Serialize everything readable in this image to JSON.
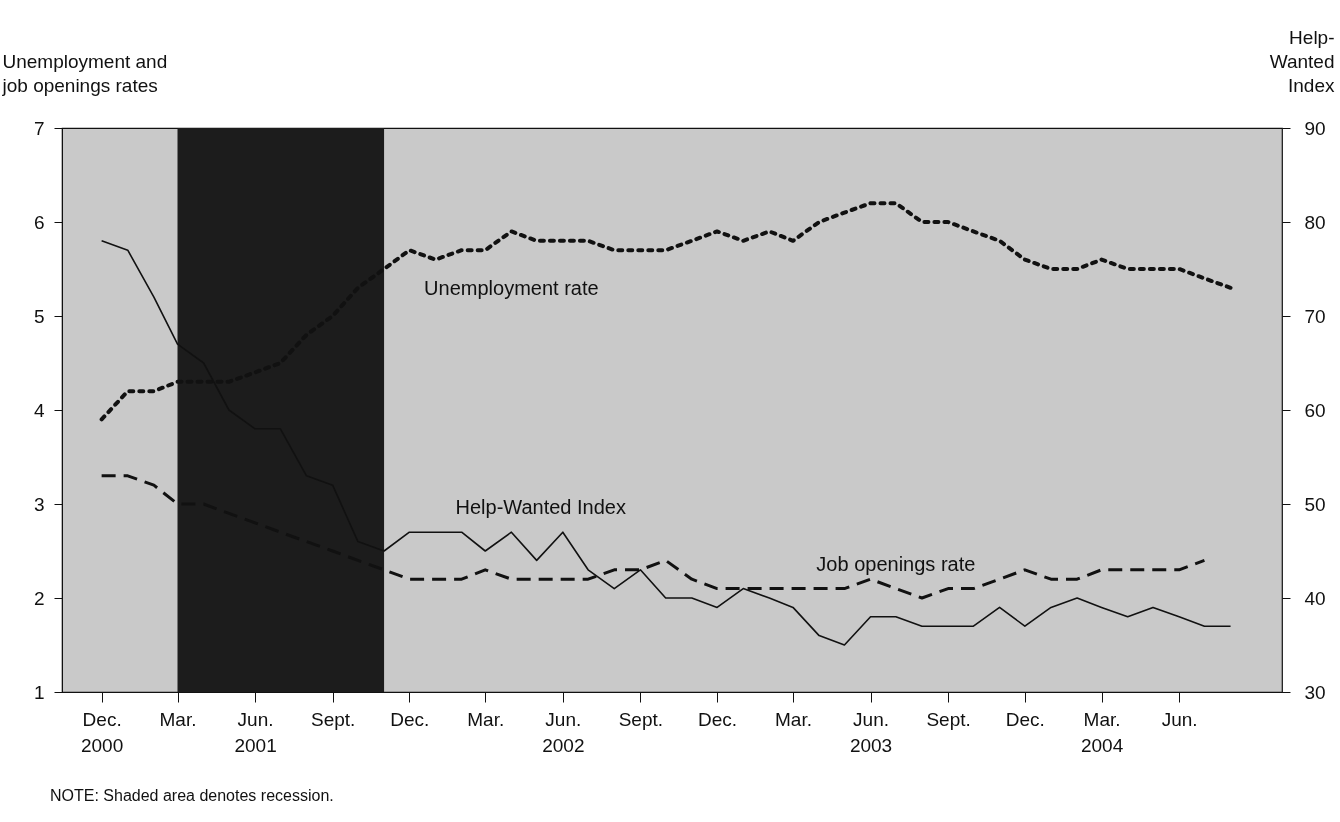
{
  "chart_data": {
    "type": "line",
    "ylabel": "Unemployment and job openings rates",
    "y2label": "Help-Wanted Index",
    "annotations": [
      "NOTE:  Shaded area denotes recession."
    ],
    "x": [
      "2000-12",
      "2001-01",
      "2001-02",
      "2001-03",
      "2001-04",
      "2001-05",
      "2001-06",
      "2001-07",
      "2001-08",
      "2001-09",
      "2001-10",
      "2001-11",
      "2001-12",
      "2002-01",
      "2002-02",
      "2002-03",
      "2002-04",
      "2002-05",
      "2002-06",
      "2002-07",
      "2002-08",
      "2002-09",
      "2002-10",
      "2002-11",
      "2002-12",
      "2003-01",
      "2003-02",
      "2003-03",
      "2003-04",
      "2003-05",
      "2003-06",
      "2003-07",
      "2003-08",
      "2003-09",
      "2003-10",
      "2003-11",
      "2003-12",
      "2004-01",
      "2004-02",
      "2004-03",
      "2004-04",
      "2004-05",
      "2004-06",
      "2004-07",
      "2004-08"
    ],
    "xlim": [
      "2000-10-15",
      "2004-10-01"
    ],
    "xticks": [
      {
        "value": "2000-12",
        "label": "Dec.\n2000"
      },
      {
        "value": "2001-03",
        "label": "Mar."
      },
      {
        "value": "2001-06",
        "label": "Jun.\n2001"
      },
      {
        "value": "2001-09",
        "label": "Sept."
      },
      {
        "value": "2001-12",
        "label": "Dec."
      },
      {
        "value": "2002-03",
        "label": "Mar."
      },
      {
        "value": "2002-06",
        "label": "Jun.\n2002"
      },
      {
        "value": "2002-09",
        "label": "Sept."
      },
      {
        "value": "2002-12",
        "label": "Dec."
      },
      {
        "value": "2003-03",
        "label": "Mar."
      },
      {
        "value": "2003-06",
        "label": "Jun.\n2003"
      },
      {
        "value": "2003-09",
        "label": "Sept."
      },
      {
        "value": "2003-12",
        "label": "Dec."
      },
      {
        "value": "2004-03",
        "label": "Mar.\n2004"
      },
      {
        "value": "2004-06",
        "label": "Jun."
      }
    ],
    "ylim": [
      1,
      7
    ],
    "yticks": [
      1,
      2,
      3,
      4,
      5,
      6,
      7
    ],
    "y2lim": [
      30,
      90
    ],
    "y2ticks": [
      30,
      40,
      50,
      60,
      70,
      80,
      90
    ],
    "bands": [
      {
        "axis": "x",
        "from": "2001-03",
        "to": "2001-11",
        "color": "#1c1c1c"
      }
    ],
    "series": [
      {
        "name": "Unemployment rate",
        "color": "#111111",
        "line_style": "dotted",
        "values": [
          3.9,
          4.2,
          4.2,
          4.3,
          4.3,
          4.3,
          4.4,
          4.5,
          4.8,
          5.0,
          5.3,
          5.5,
          5.7,
          5.6,
          5.7,
          5.7,
          5.9,
          5.8,
          5.8,
          5.8,
          5.7,
          5.7,
          5.7,
          5.8,
          5.9,
          5.8,
          5.9,
          5.8,
          6.0,
          6.1,
          6.2,
          6.2,
          6.0,
          6.0,
          5.9,
          5.8,
          5.6,
          5.5,
          5.5,
          5.6,
          5.5,
          5.5,
          5.5,
          5.4,
          5.3
        ]
      },
      {
        "name": "Help-Wanted Index",
        "color": "#111111",
        "line_style": "solid",
        "axis": "y2",
        "values": [
          78,
          77,
          72,
          67,
          65,
          60,
          58,
          58,
          53,
          52,
          46,
          45,
          47,
          47,
          47,
          45,
          47,
          44,
          47,
          43,
          41,
          43,
          40,
          40,
          39,
          41,
          40,
          39,
          36,
          35,
          38,
          38,
          37,
          37,
          37,
          39,
          37,
          39,
          40,
          39,
          38,
          39,
          38,
          37,
          37
        ]
      },
      {
        "name": "Job openings rate",
        "color": "#111111",
        "line_style": "dashed",
        "values": [
          3.3,
          3.3,
          3.2,
          3.0,
          3.0,
          2.9,
          2.8,
          2.7,
          2.6,
          2.5,
          2.4,
          2.3,
          2.2,
          2.2,
          2.2,
          2.3,
          2.2,
          2.2,
          2.2,
          2.2,
          2.3,
          2.3,
          2.4,
          2.2,
          2.1,
          2.1,
          2.1,
          2.1,
          2.1,
          2.1,
          2.2,
          2.1,
          2.0,
          2.1,
          2.1,
          2.2,
          2.3,
          2.2,
          2.2,
          2.3,
          2.3,
          2.3,
          2.3,
          2.4,
          null
        ]
      }
    ]
  }
}
